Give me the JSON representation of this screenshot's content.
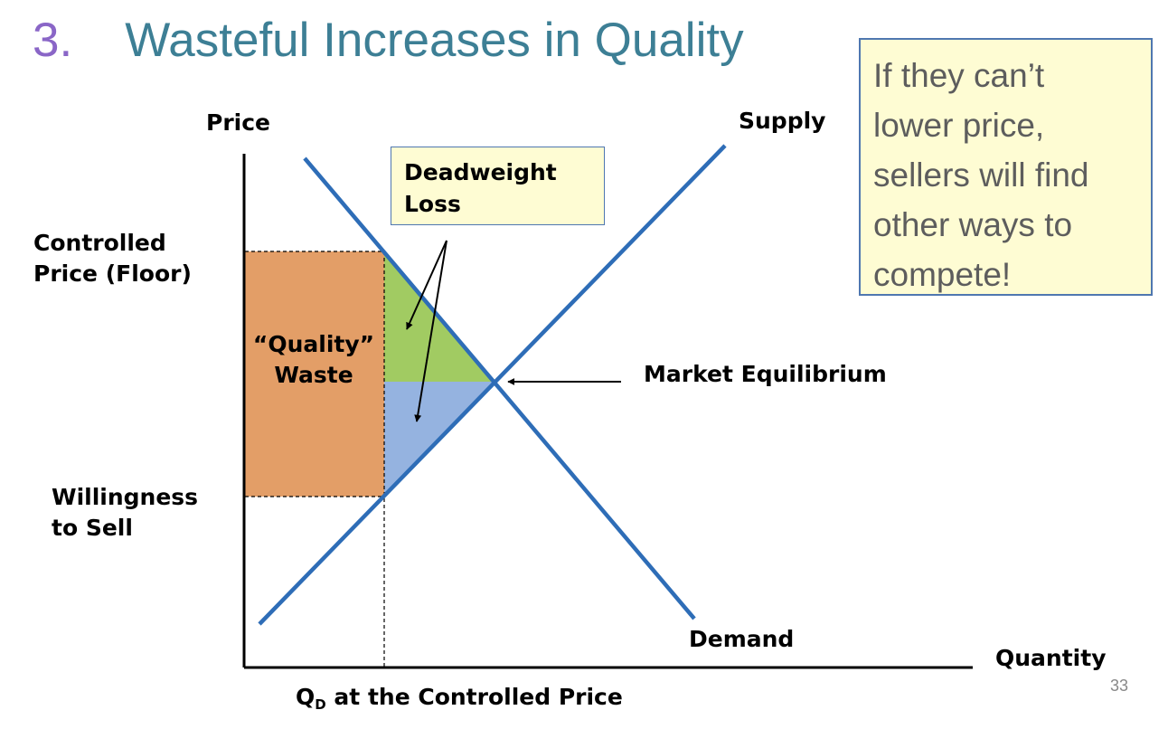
{
  "title": {
    "number": "3.",
    "text": "Wasteful Increases in Quality"
  },
  "callout": {
    "lines": [
      "If they can’t",
      "lower price,",
      "sellers will find",
      "other ways to",
      "compete!"
    ]
  },
  "diagram": {
    "y_axis_label": "Price",
    "x_axis_label": "Quantity",
    "supply_label": "Supply",
    "demand_label": "Demand",
    "deadweight_loss": {
      "line1": "Deadweight",
      "line2": "Loss"
    },
    "controlled_price": {
      "line1": "Controlled",
      "line2": "Price (Floor)"
    },
    "willingness_to_sell": {
      "line1": "Willingness",
      "line2": "to Sell"
    },
    "quality_waste": {
      "line1": "“Quality”",
      "line2": "Waste"
    },
    "market_equilibrium": "Market Equilibrium",
    "qd_label": {
      "main": "Q",
      "sub": "D",
      "rest": " at the Controlled Price"
    }
  },
  "page_number": "33",
  "colors": {
    "title": "#3d7f95",
    "title_number": "#8a66c7",
    "curves": "#2e6db7",
    "quality_waste_fill": "#e39e67",
    "dwl_upper_fill": "#a1cb62",
    "dwl_lower_fill": "#95b3e0",
    "callout_fill": "#fefcd3",
    "callout_border": "#4f77b0"
  }
}
